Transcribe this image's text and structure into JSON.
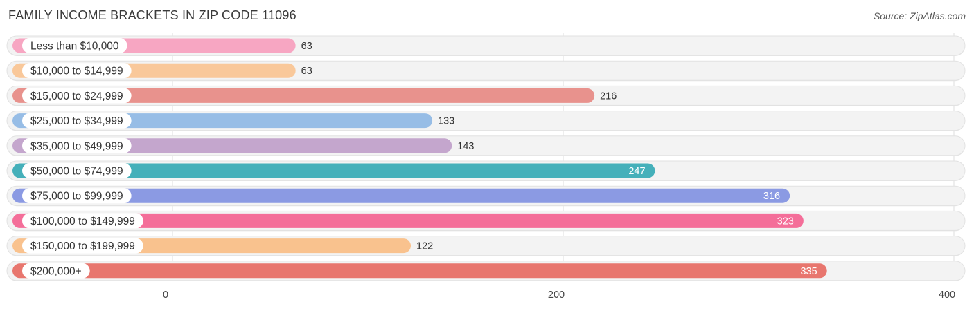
{
  "header": {
    "title": "FAMILY INCOME BRACKETS IN ZIP CODE 11096",
    "source": "Source: ZipAtlas.com"
  },
  "chart_data": {
    "type": "bar",
    "orientation": "horizontal",
    "title": "FAMILY INCOME BRACKETS IN ZIP CODE 11096",
    "xlabel": "",
    "ylabel": "",
    "xlim": [
      0,
      400
    ],
    "ticks": [
      0,
      200,
      400
    ],
    "grid": true,
    "categories": [
      "Less than $10,000",
      "$10,000 to $14,999",
      "$15,000 to $24,999",
      "$25,000 to $34,999",
      "$35,000 to $49,999",
      "$50,000 to $74,999",
      "$75,000 to $99,999",
      "$100,000 to $149,999",
      "$150,000 to $199,999",
      "$200,000+"
    ],
    "values": [
      63,
      63,
      216,
      133,
      143,
      247,
      316,
      323,
      122,
      335
    ],
    "colors": [
      "#f7a6c2",
      "#f9c89a",
      "#e8928d",
      "#97bde6",
      "#c4a6cd",
      "#45b0ba",
      "#8b9ae3",
      "#f46e99",
      "#f9c28e",
      "#e8766e"
    ]
  }
}
